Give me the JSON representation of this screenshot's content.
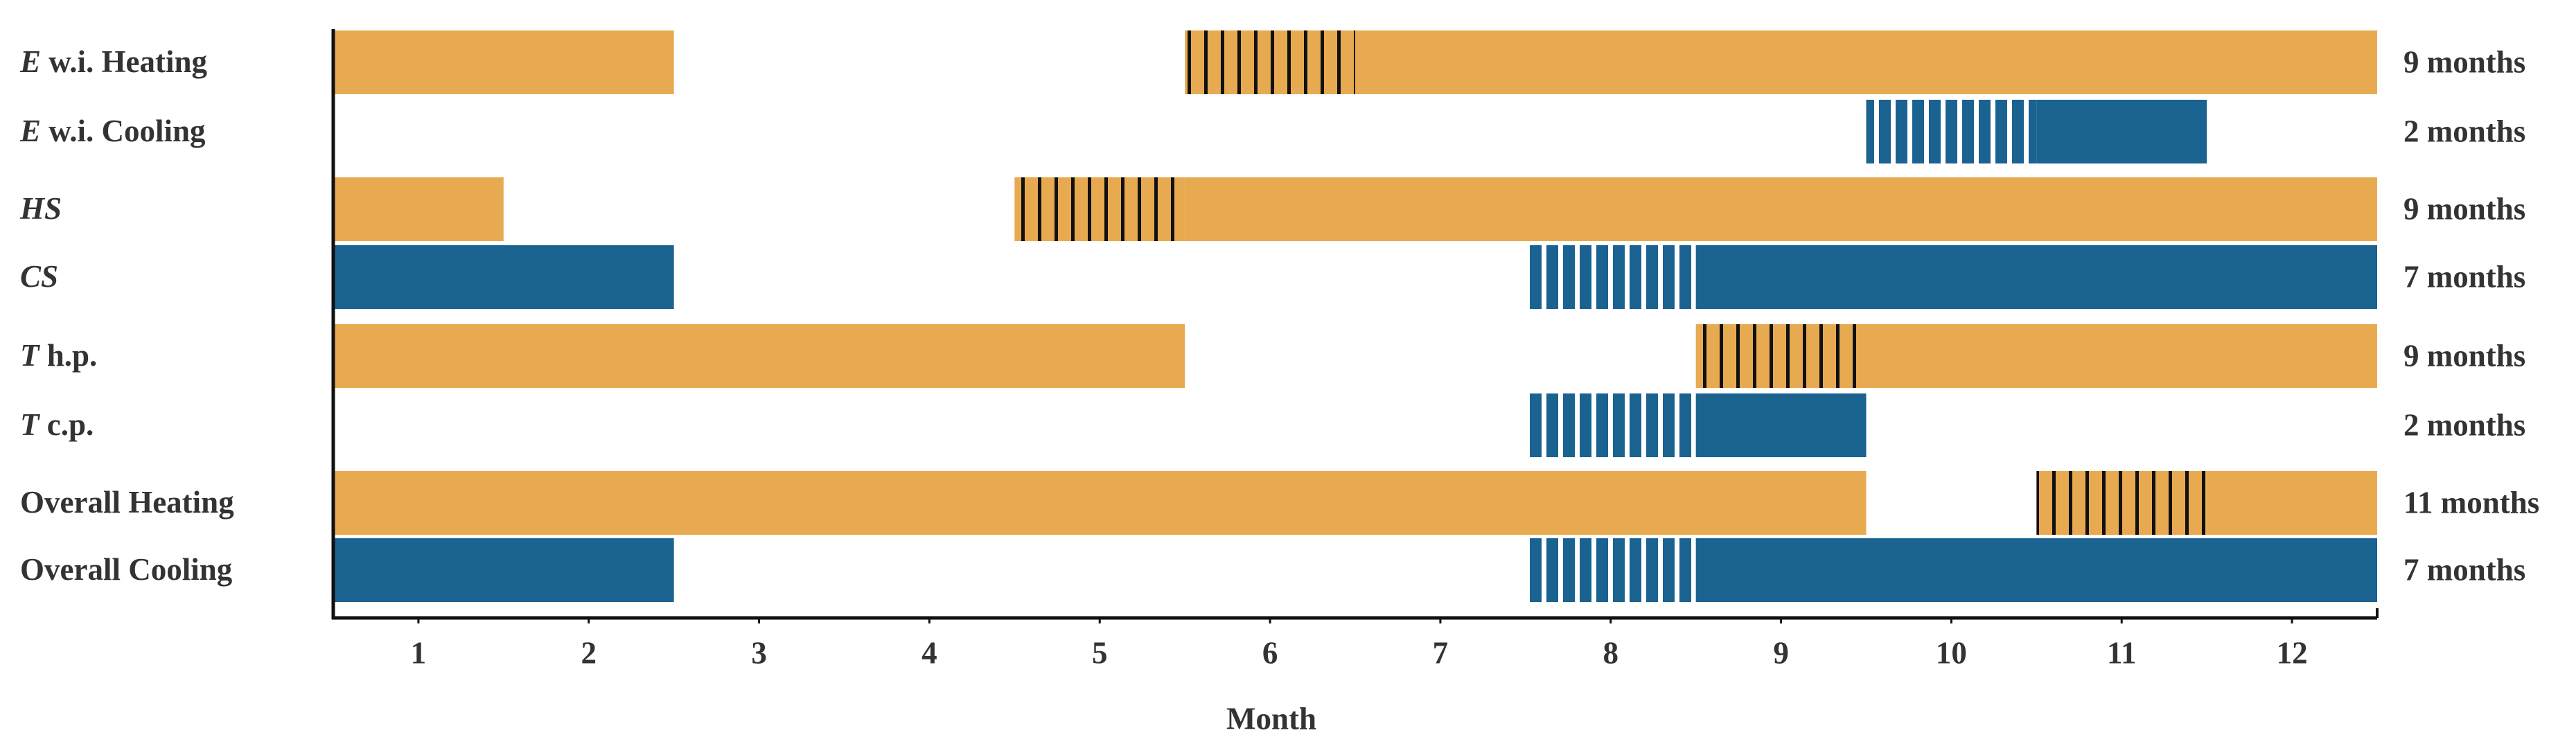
{
  "chart_data": {
    "type": "gantt",
    "xlabel": "Month",
    "xlim": [
      0.5,
      12.5
    ],
    "xticks": [
      1,
      2,
      3,
      4,
      5,
      6,
      7,
      8,
      9,
      10,
      11,
      12
    ],
    "colors": {
      "heating": "#e8aa51",
      "cooling": "#1a6391"
    },
    "rows": [
      {
        "label": [
          {
            "text": "E",
            "italic": true
          },
          {
            "text": " w.i. Heating"
          }
        ],
        "kind": "heating",
        "duration": "9 months",
        "segments": [
          {
            "start": 0.5,
            "end": 2.5
          },
          {
            "start": 5.5,
            "end": 6.5,
            "transition": true
          },
          {
            "start": 6.5,
            "end": 12.5
          }
        ]
      },
      {
        "label": [
          {
            "text": "E",
            "italic": true
          },
          {
            "text": " w.i. Cooling"
          }
        ],
        "kind": "cooling",
        "duration": "2 months",
        "segments": [
          {
            "start": 9.5,
            "end": 10.5,
            "transition": true
          },
          {
            "start": 10.5,
            "end": 11.5
          }
        ]
      },
      {
        "label": [
          {
            "text": "HS",
            "italic": true
          }
        ],
        "kind": "heating",
        "duration": "9 months",
        "segments": [
          {
            "start": 0.5,
            "end": 1.5
          },
          {
            "start": 4.5,
            "end": 5.5,
            "transition": true
          },
          {
            "start": 5.5,
            "end": 12.5
          }
        ]
      },
      {
        "label": [
          {
            "text": "CS",
            "italic": true
          }
        ],
        "kind": "cooling",
        "duration": "7 months",
        "segments": [
          {
            "start": 0.5,
            "end": 2.5
          },
          {
            "start": 7.5,
            "end": 8.5,
            "transition": true
          },
          {
            "start": 8.5,
            "end": 12.5
          }
        ]
      },
      {
        "label": [
          {
            "text": "T",
            "italic": true
          },
          {
            "text": " h.p."
          }
        ],
        "kind": "heating",
        "duration": "9 months",
        "segments": [
          {
            "start": 0.5,
            "end": 5.5
          },
          {
            "start": 8.5,
            "end": 9.5,
            "transition": true
          },
          {
            "start": 9.5,
            "end": 12.5
          }
        ]
      },
      {
        "label": [
          {
            "text": "T",
            "italic": true
          },
          {
            "text": " c.p."
          }
        ],
        "kind": "cooling",
        "duration": "2 months",
        "segments": [
          {
            "start": 7.5,
            "end": 8.5,
            "transition": true
          },
          {
            "start": 8.5,
            "end": 9.5
          }
        ]
      },
      {
        "label": [
          {
            "text": "Overall Heating"
          }
        ],
        "kind": "heating",
        "duration": "11 months",
        "segments": [
          {
            "start": 0.5,
            "end": 9.5
          },
          {
            "start": 10.5,
            "end": 11.5,
            "transition": true
          },
          {
            "start": 11.5,
            "end": 12.5
          }
        ]
      },
      {
        "label": [
          {
            "text": "Overall Cooling"
          }
        ],
        "kind": "cooling",
        "duration": "7 months",
        "segments": [
          {
            "start": 0.5,
            "end": 2.5
          },
          {
            "start": 7.5,
            "end": 8.5,
            "transition": true
          },
          {
            "start": 8.5,
            "end": 12.5
          }
        ]
      }
    ]
  }
}
